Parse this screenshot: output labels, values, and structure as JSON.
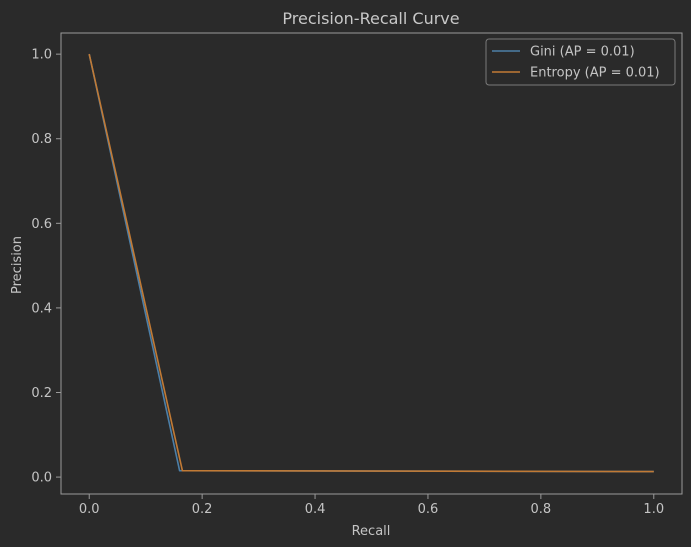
{
  "chart_data": {
    "type": "line",
    "title": "Precision-Recall Curve",
    "xlabel": "Recall",
    "ylabel": "Precision",
    "xlim": [
      -0.05,
      1.05
    ],
    "ylim": [
      -0.04,
      1.05
    ],
    "xticks": [
      0.0,
      0.2,
      0.4,
      0.6,
      0.8,
      1.0
    ],
    "xtick_labels": [
      "0.0",
      "0.2",
      "0.4",
      "0.6",
      "0.8",
      "1.0"
    ],
    "yticks": [
      0.0,
      0.2,
      0.4,
      0.6,
      0.8,
      1.0
    ],
    "ytick_labels": [
      "0.0",
      "0.2",
      "0.4",
      "0.6",
      "0.8",
      "1.0"
    ],
    "grid": false,
    "legend_position": "top-right",
    "series": [
      {
        "name": "Gini (AP = 0.01)",
        "color": "#4c7fa8",
        "x": [
          0.0,
          0.16,
          1.0
        ],
        "y": [
          1.0,
          0.015,
          0.013
        ]
      },
      {
        "name": "Entropy (AP = 0.01)",
        "color": "#c17a35",
        "x": [
          0.0,
          0.165,
          1.0
        ],
        "y": [
          1.0,
          0.015,
          0.013
        ]
      }
    ]
  }
}
